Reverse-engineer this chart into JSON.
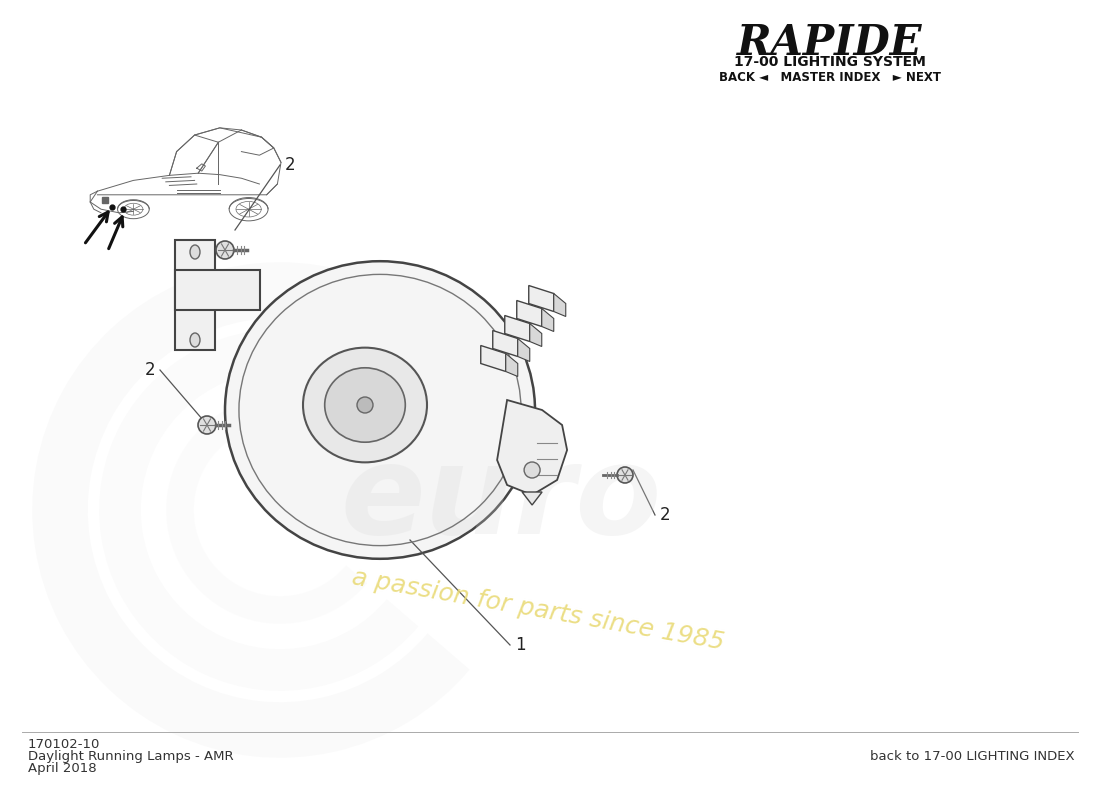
{
  "bg_color": "#ffffff",
  "title_rapide": "RAPIDE",
  "title_system": "17-00 LIGHTING SYSTEM",
  "nav_text": "BACK ◄   MASTER INDEX   ► NEXT",
  "part_number": "170102-10",
  "part_name": "Daylight Running Lamps - AMR",
  "date": "April 2018",
  "footer_right": "back to 17-00 LIGHTING INDEX",
  "watermark_text": "euro",
  "watermark_subtext": "a passion for parts since 1985",
  "label_1": "1",
  "label_2": "2",
  "line_color": "#444444",
  "label_color": "#222222",
  "watermark_color": "#d8d8d8",
  "watermark_text_color": "#d8d8d8",
  "watermark_subtext_color": "#e8d870"
}
